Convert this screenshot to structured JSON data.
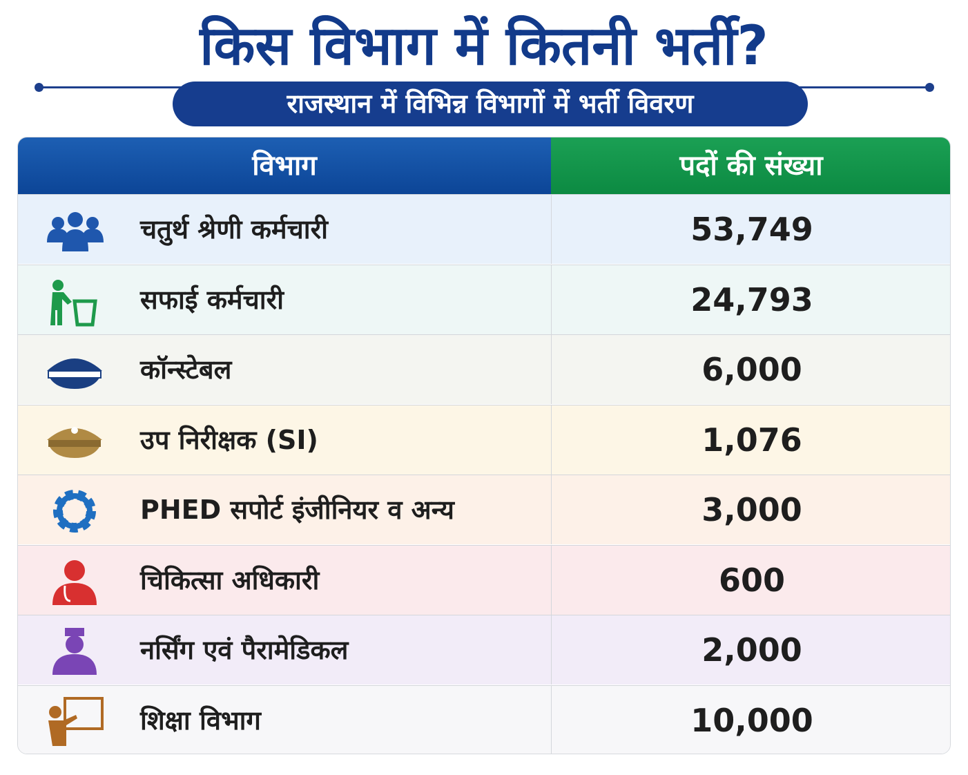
{
  "header": {
    "title": "किस विभाग में कितनी भर्ती?",
    "subtitle": "राजस्थान में विभिन्न विभागों में भर्ती विवरण"
  },
  "table": {
    "columns": [
      "विभाग",
      "पदों की संख्या"
    ],
    "rows": [
      [
        "चतुर्थ श्रेणी कर्मचारी",
        "53,749"
      ],
      [
        "सफाई कर्मचारी",
        "24,793"
      ],
      [
        "कॉन्स्टेबल",
        "6,000"
      ],
      [
        "उप निरीक्षक (SI)",
        "1,076"
      ],
      [
        "PHED सपोर्ट इंजीनियर व अन्य",
        "3,000"
      ],
      [
        "चिकित्सा अधिकारी",
        "600"
      ],
      [
        "नर्सिंग एवं पैरामेडिकल",
        "2,000"
      ],
      [
        "शिक्षा विभाग",
        "10,000"
      ]
    ]
  }
}
